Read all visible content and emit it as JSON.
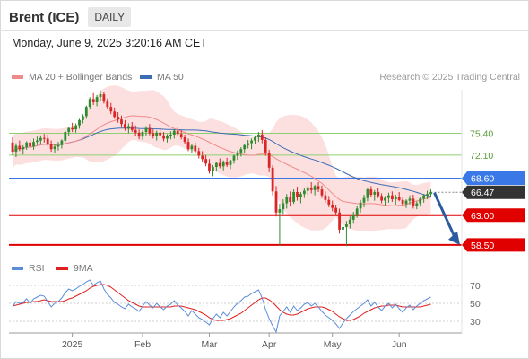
{
  "header": {
    "title": "Brent (ICE)",
    "timeframe": "DAILY",
    "datetime": "Monday, June 9, 2025 3:20:16 AM CET"
  },
  "legend": {
    "ma20": "MA 20 + Bollinger Bands",
    "ma50": "MA 50",
    "credit": "Research © 2025 Trading Central"
  },
  "colors": {
    "up": "#2e8b2e",
    "down": "#d92525",
    "ma20": "#f08a8a",
    "ma50": "#3b6db5",
    "band": "#fbdada",
    "resistance_green": "#8fcf6f",
    "current": "#3b78e7",
    "support": "#e00000",
    "rsi": "#5b8dd9",
    "rsi_ma": "#e02020",
    "arrow": "#2b5aa0"
  },
  "chart_data": [
    {
      "type": "candlestick",
      "title": "",
      "xlabel": "",
      "ylabel": "",
      "ylim": [
        57.8,
        82.0
      ],
      "x_ticks": [
        "2025",
        "Feb",
        "Mar",
        "Apr",
        "May",
        "Jun"
      ],
      "legend_position": "top-left",
      "levels": [
        {
          "label": "75.40",
          "value": 75.4,
          "kind": "resistance"
        },
        {
          "label": "72.10",
          "value": 72.1,
          "kind": "resistance"
        },
        {
          "label": "68.60",
          "value": 68.6,
          "kind": "current"
        },
        {
          "label": "66.47",
          "value": 66.47,
          "kind": "last"
        },
        {
          "label": "63.00",
          "value": 63.0,
          "kind": "support"
        },
        {
          "label": "58.50",
          "value": 58.5,
          "kind": "support"
        }
      ],
      "forecast": {
        "from": 66.4,
        "to": 58.5
      },
      "candles": [
        [
          74.0,
          74.8,
          72.1,
          72.6
        ],
        [
          72.6,
          73.9,
          71.8,
          73.5
        ],
        [
          73.5,
          74.3,
          72.7,
          73.0
        ],
        [
          73.0,
          73.6,
          72.2,
          73.3
        ],
        [
          73.3,
          74.2,
          72.9,
          74.0
        ],
        [
          74.0,
          74.5,
          73.1,
          73.4
        ],
        [
          73.4,
          74.6,
          72.9,
          74.1
        ],
        [
          74.1,
          74.9,
          73.6,
          74.3
        ],
        [
          74.3,
          75.1,
          73.8,
          74.7
        ],
        [
          74.7,
          75.3,
          74.0,
          74.6
        ],
        [
          74.6,
          75.2,
          73.5,
          73.8
        ],
        [
          73.8,
          74.3,
          72.6,
          73.0
        ],
        [
          73.0,
          73.8,
          72.4,
          73.4
        ],
        [
          73.4,
          74.1,
          72.8,
          73.6
        ],
        [
          73.6,
          74.5,
          73.1,
          74.3
        ],
        [
          74.3,
          75.8,
          74.0,
          75.6
        ],
        [
          75.6,
          76.4,
          75.0,
          76.2
        ],
        [
          76.2,
          77.0,
          75.6,
          76.0
        ],
        [
          76.0,
          76.9,
          75.5,
          76.6
        ],
        [
          76.6,
          77.6,
          76.1,
          77.4
        ],
        [
          77.4,
          78.3,
          76.9,
          78.0
        ],
        [
          78.0,
          79.6,
          77.6,
          79.4
        ],
        [
          79.4,
          80.9,
          79.0,
          80.6
        ],
        [
          80.6,
          81.5,
          79.7,
          80.1
        ],
        [
          80.1,
          81.2,
          79.5,
          80.9
        ],
        [
          80.9,
          81.9,
          80.3,
          81.3
        ],
        [
          81.3,
          81.6,
          79.9,
          80.2
        ],
        [
          80.2,
          80.7,
          79.0,
          79.4
        ],
        [
          79.4,
          80.0,
          78.3,
          78.7
        ],
        [
          78.7,
          79.3,
          77.6,
          77.9
        ],
        [
          77.9,
          78.6,
          77.0,
          77.5
        ],
        [
          77.5,
          78.1,
          76.4,
          76.8
        ],
        [
          76.8,
          77.4,
          75.8,
          76.1
        ],
        [
          76.1,
          76.9,
          75.4,
          76.5
        ],
        [
          76.5,
          77.1,
          75.6,
          75.9
        ],
        [
          75.9,
          76.6,
          75.0,
          75.5
        ],
        [
          75.5,
          76.0,
          74.5,
          74.9
        ],
        [
          74.9,
          75.9,
          74.4,
          75.6
        ],
        [
          75.6,
          76.5,
          75.0,
          76.2
        ],
        [
          76.2,
          76.8,
          75.1,
          75.4
        ],
        [
          75.4,
          76.0,
          74.6,
          75.0
        ],
        [
          75.0,
          75.8,
          74.3,
          75.5
        ],
        [
          75.5,
          76.2,
          74.9,
          75.1
        ],
        [
          75.1,
          75.6,
          74.2,
          74.6
        ],
        [
          74.6,
          75.3,
          74.0,
          75.0
        ],
        [
          75.0,
          75.7,
          74.5,
          75.2
        ],
        [
          75.2,
          76.0,
          74.6,
          75.8
        ],
        [
          75.8,
          76.4,
          75.0,
          75.3
        ],
        [
          75.3,
          75.9,
          74.5,
          74.8
        ],
        [
          74.8,
          75.2,
          73.8,
          74.1
        ],
        [
          74.1,
          74.6,
          72.7,
          73.0
        ],
        [
          73.0,
          73.8,
          72.4,
          73.5
        ],
        [
          73.5,
          74.0,
          72.3,
          72.7
        ],
        [
          72.7,
          73.2,
          71.6,
          72.0
        ],
        [
          72.0,
          72.7,
          71.1,
          71.5
        ],
        [
          71.5,
          72.1,
          70.4,
          70.8
        ],
        [
          70.8,
          71.5,
          69.3,
          69.7
        ],
        [
          69.7,
          70.6,
          68.9,
          70.3
        ],
        [
          70.3,
          71.1,
          69.6,
          70.9
        ],
        [
          70.9,
          71.6,
          70.1,
          70.4
        ],
        [
          70.4,
          71.3,
          69.8,
          71.1
        ],
        [
          71.1,
          71.7,
          70.3,
          70.6
        ],
        [
          70.6,
          71.4,
          70.0,
          71.3
        ],
        [
          71.3,
          72.2,
          70.8,
          72.0
        ],
        [
          72.0,
          72.8,
          71.4,
          72.5
        ],
        [
          72.5,
          73.3,
          71.9,
          73.0
        ],
        [
          73.0,
          73.8,
          72.4,
          73.6
        ],
        [
          73.6,
          74.4,
          73.1,
          73.9
        ],
        [
          73.9,
          74.6,
          73.0,
          74.3
        ],
        [
          74.3,
          75.1,
          73.8,
          74.8
        ],
        [
          74.8,
          75.6,
          74.1,
          75.2
        ],
        [
          75.2,
          75.9,
          73.9,
          74.4
        ],
        [
          74.4,
          74.8,
          72.0,
          72.5
        ],
        [
          72.5,
          72.9,
          69.5,
          70.2
        ],
        [
          70.2,
          70.6,
          66.0,
          66.6
        ],
        [
          66.6,
          67.4,
          62.8,
          63.4
        ],
        [
          63.4,
          64.7,
          58.4,
          63.9
        ],
        [
          63.9,
          65.4,
          63.2,
          64.8
        ],
        [
          64.8,
          66.2,
          64.0,
          65.7
        ],
        [
          65.7,
          66.6,
          64.3,
          65.0
        ],
        [
          65.0,
          66.9,
          64.7,
          66.5
        ],
        [
          66.5,
          67.3,
          65.2,
          65.8
        ],
        [
          65.8,
          66.5,
          64.8,
          66.2
        ],
        [
          66.2,
          67.1,
          65.6,
          66.7
        ],
        [
          66.7,
          67.4,
          66.1,
          67.2
        ],
        [
          67.2,
          68.0,
          66.3,
          66.8
        ],
        [
          66.8,
          67.6,
          66.0,
          67.4
        ],
        [
          67.4,
          68.0,
          66.5,
          66.9
        ],
        [
          66.9,
          67.5,
          65.6,
          66.0
        ],
        [
          66.0,
          66.6,
          64.9,
          65.3
        ],
        [
          65.3,
          65.9,
          64.2,
          64.6
        ],
        [
          64.6,
          65.2,
          63.6,
          64.1
        ],
        [
          64.1,
          64.6,
          62.9,
          63.4
        ],
        [
          63.4,
          64.0,
          60.2,
          60.8
        ],
        [
          60.8,
          61.7,
          60.0,
          61.2
        ],
        [
          61.2,
          62.1,
          58.3,
          61.6
        ],
        [
          61.6,
          62.8,
          61.0,
          62.3
        ],
        [
          62.3,
          63.5,
          61.7,
          63.1
        ],
        [
          63.1,
          64.4,
          62.6,
          64.0
        ],
        [
          64.0,
          65.3,
          63.4,
          64.9
        ],
        [
          64.9,
          66.1,
          64.2,
          65.6
        ],
        [
          65.6,
          67.2,
          65.1,
          66.9
        ],
        [
          66.9,
          67.4,
          65.7,
          66.1
        ],
        [
          66.1,
          66.8,
          65.2,
          66.5
        ],
        [
          66.5,
          67.1,
          65.6,
          65.9
        ],
        [
          65.9,
          66.3,
          64.8,
          65.2
        ],
        [
          65.2,
          65.9,
          64.5,
          65.6
        ],
        [
          65.6,
          66.4,
          64.9,
          66.0
        ],
        [
          66.0,
          66.6,
          65.0,
          65.4
        ],
        [
          65.4,
          66.1,
          64.6,
          65.8
        ],
        [
          65.8,
          66.5,
          65.1,
          65.3
        ],
        [
          65.3,
          65.8,
          64.3,
          64.7
        ],
        [
          64.7,
          65.4,
          64.1,
          65.2
        ],
        [
          65.2,
          66.0,
          64.6,
          65.5
        ],
        [
          65.5,
          66.1,
          64.0,
          64.4
        ],
        [
          64.4,
          65.1,
          63.9,
          64.8
        ],
        [
          64.8,
          65.7,
          64.3,
          65.5
        ],
        [
          65.5,
          66.2,
          64.9,
          66.0
        ],
        [
          66.0,
          66.7,
          65.4,
          66.2
        ],
        [
          66.2,
          66.9,
          65.8,
          66.47
        ]
      ]
    },
    {
      "type": "line",
      "title": "",
      "legend": [
        "RSI",
        "9MA"
      ],
      "y_ticks": [
        70,
        50,
        30
      ],
      "ylim": [
        20,
        78
      ],
      "series": [
        {
          "name": "RSI",
          "values": [
            46,
            52,
            50,
            51,
            55,
            50,
            55,
            57,
            59,
            58,
            52,
            46,
            50,
            52,
            56,
            62,
            66,
            64,
            66,
            69,
            71,
            74,
            76,
            70,
            73,
            75,
            66,
            60,
            56,
            51,
            49,
            46,
            44,
            49,
            46,
            44,
            41,
            47,
            52,
            48,
            45,
            50,
            46,
            43,
            47,
            49,
            53,
            48,
            45,
            41,
            36,
            42,
            38,
            34,
            32,
            29,
            26,
            33,
            38,
            34,
            40,
            36,
            41,
            46,
            50,
            53,
            57,
            58,
            61,
            63,
            65,
            56,
            43,
            33,
            25,
            18,
            36,
            41,
            46,
            40,
            47,
            42,
            45,
            49,
            51,
            47,
            50,
            46,
            41,
            37,
            34,
            31,
            27,
            22,
            28,
            33,
            37,
            41,
            44,
            47,
            50,
            54,
            47,
            51,
            46,
            42,
            47,
            50,
            45,
            49,
            44,
            40,
            45,
            48,
            43,
            47,
            50,
            53,
            55,
            57
          ]
        },
        {
          "name": "9MA",
          "values": [
            47,
            48,
            49,
            50,
            51,
            51,
            52,
            52,
            53,
            54,
            53,
            52,
            52,
            52,
            52,
            53,
            55,
            56,
            58,
            60,
            62,
            64,
            67,
            69,
            70,
            71,
            71,
            70,
            68,
            65,
            62,
            59,
            56,
            53,
            51,
            49,
            47,
            46,
            46,
            46,
            46,
            46,
            46,
            46,
            46,
            46,
            47,
            47,
            47,
            46,
            45,
            44,
            43,
            41,
            39,
            37,
            34,
            32,
            31,
            31,
            31,
            32,
            33,
            35,
            37,
            39,
            42,
            45,
            48,
            51,
            54,
            56,
            56,
            54,
            51,
            47,
            43,
            40,
            38,
            37,
            37,
            38,
            40,
            42,
            44,
            45,
            46,
            46,
            46,
            45,
            43,
            41,
            38,
            35,
            33,
            31,
            31,
            32,
            34,
            36,
            39,
            41,
            43,
            45,
            46,
            47,
            47,
            48,
            48,
            48,
            47,
            46,
            46,
            46,
            46,
            46,
            46,
            47,
            48,
            49
          ]
        }
      ]
    }
  ]
}
